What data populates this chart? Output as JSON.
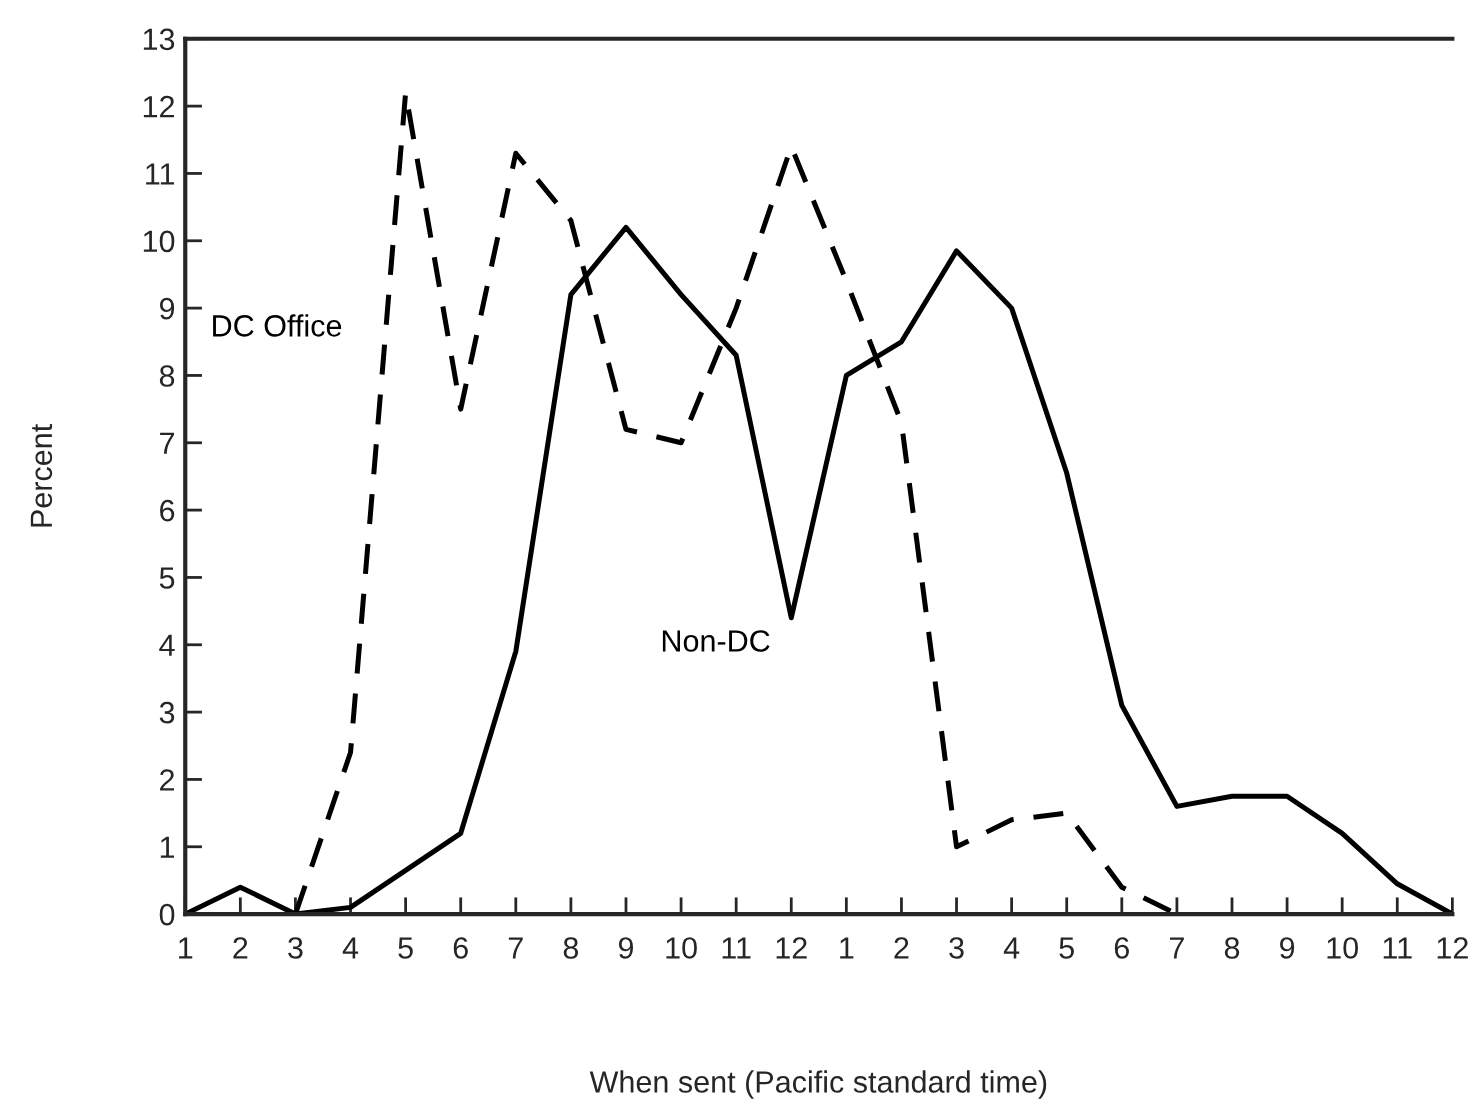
{
  "chart_data": {
    "type": "line",
    "xlabel": "When sent (Pacific standard time)",
    "ylabel": "Percent",
    "categories": [
      "1",
      "2",
      "3",
      "4",
      "5",
      "6",
      "7",
      "8",
      "9",
      "10",
      "11",
      "12",
      "1",
      "2",
      "3",
      "4",
      "5",
      "6",
      "7",
      "8",
      "9",
      "10",
      "11",
      "12"
    ],
    "series": [
      {
        "name": "DC Office",
        "color": "#000000",
        "line_style": "dashed",
        "values": [
          null,
          null,
          0,
          2.4,
          12.2,
          7.5,
          11.3,
          10.3,
          7.2,
          7.0,
          9.0,
          11.4,
          9.4,
          7.3,
          1.0,
          1.4,
          1.5,
          0.4,
          0,
          null,
          null,
          null,
          null,
          null
        ]
      },
      {
        "name": "Non-DC",
        "color": "#000000",
        "line_style": "solid",
        "values": [
          0,
          0.4,
          0,
          0.1,
          0.65,
          1.2,
          3.9,
          9.2,
          10.2,
          9.2,
          8.3,
          4.4,
          8.0,
          8.5,
          9.85,
          9.0,
          6.55,
          3.1,
          1.6,
          1.75,
          1.75,
          1.2,
          0.45,
          0
        ]
      }
    ],
    "ylim": [
      0,
      13
    ],
    "yticks": [
      0,
      1,
      2,
      3,
      4,
      5,
      6,
      7,
      8,
      9,
      10,
      11,
      12,
      13
    ],
    "grid": false,
    "legend": false,
    "marker": "none"
  }
}
